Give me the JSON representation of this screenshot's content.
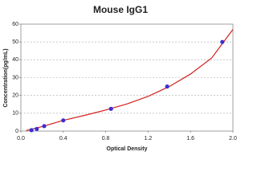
{
  "chart_data": {
    "type": "scatter",
    "title": "Mouse IgG1",
    "x_label": "Optical Density",
    "y_label": "Concentration(pg/mL)",
    "xlim": [
      0,
      2
    ],
    "xticks": [
      {
        "value": 0,
        "label": "0.0"
      },
      {
        "value": 0.4,
        "label": "0.4"
      },
      {
        "value": 0.8,
        "label": "0.8"
      },
      {
        "value": 1.2,
        "label": "1.2"
      },
      {
        "value": 1.6,
        "label": "1.6"
      },
      {
        "value": 2,
        "label": "2.0"
      }
    ],
    "ylim": [
      0,
      60
    ],
    "yticks": [
      0,
      10,
      20,
      30,
      40,
      50,
      60
    ],
    "grid": true,
    "series": [
      {
        "type": "scatter",
        "color": "#3b2fd1",
        "x": [
          0.1,
          0.15,
          0.22,
          0.4,
          0.85,
          1.38,
          1.9
        ],
        "values": [
          0.5,
          1.2,
          2.8,
          6,
          12.5,
          25,
          50
        ]
      },
      {
        "type": "line",
        "color": "#d42020",
        "x": [
          0.05,
          0.2,
          0.4,
          0.6,
          0.8,
          1.0,
          1.2,
          1.4,
          1.6,
          1.8,
          2.0
        ],
        "values": [
          0.3,
          2.5,
          6,
          8.8,
          11.8,
          15.2,
          19.5,
          25,
          32,
          41,
          57
        ]
      }
    ]
  }
}
